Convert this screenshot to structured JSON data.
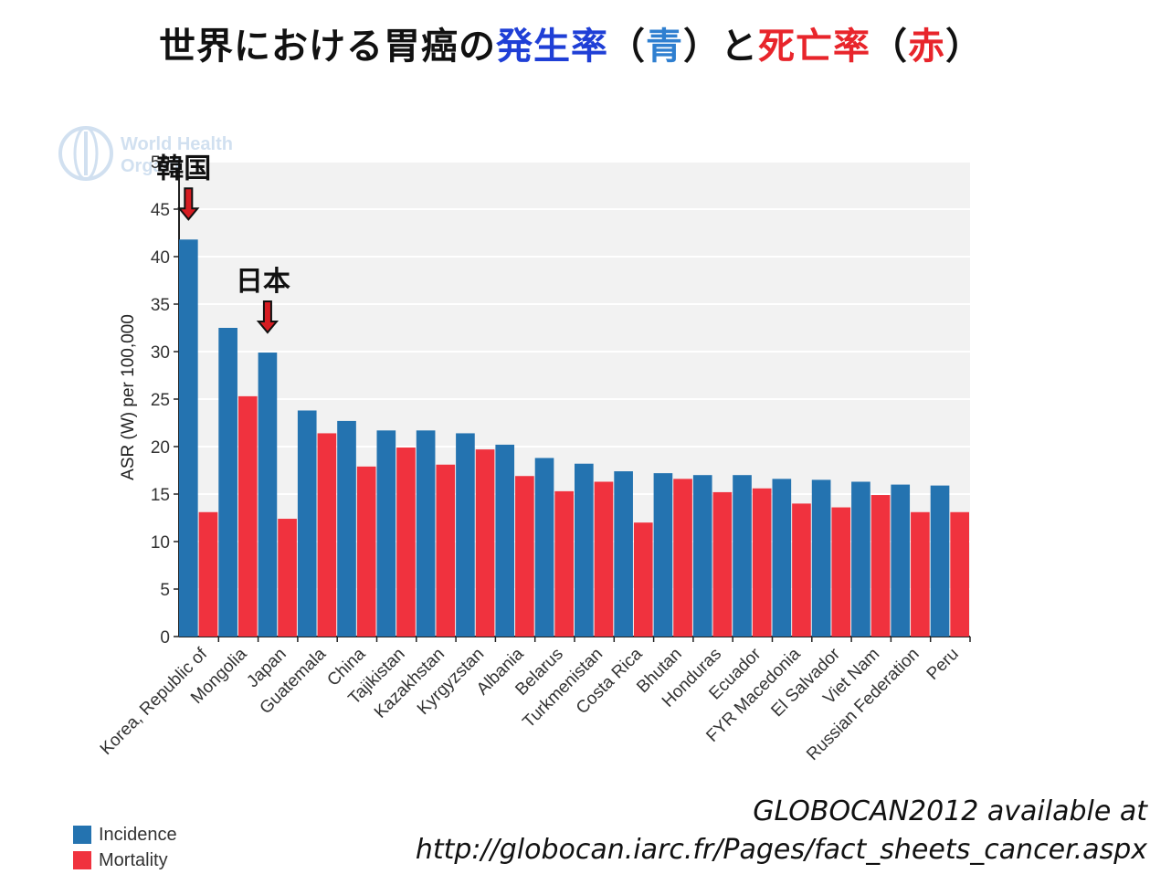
{
  "title": {
    "part1": "世界における胃癌の",
    "part2": "発生率",
    "part3": "（",
    "part4": "青",
    "part5": "）と",
    "part6": "死亡率",
    "part7": "（",
    "part8": "赤",
    "part9": "）"
  },
  "logo_text": {
    "line1": "World Health",
    "line2": "Organization"
  },
  "annotations": [
    {
      "label": "韓国",
      "category": "Korea, Republic of"
    },
    {
      "label": "日本",
      "category": "Japan"
    }
  ],
  "source": {
    "line1": "GLOBOCAN2012 available at",
    "line2": "http://globocan.iarc.fr/Pages/fact_sheets_cancer.aspx"
  },
  "colors": {
    "incidence": "#2473b0",
    "mortality": "#f0323e",
    "plot_bg": "#f2f2f2"
  },
  "chart_data": {
    "type": "bar",
    "title": "",
    "xlabel": "",
    "ylabel": "ASR (W) per 100,000",
    "ylim": [
      0,
      50
    ],
    "yticks": [
      0,
      5,
      10,
      15,
      20,
      25,
      30,
      35,
      40,
      45,
      50
    ],
    "grid": true,
    "legend_position": "bottom-left",
    "categories": [
      "Korea, Republic of",
      "Mongolia",
      "Japan",
      "Guatemala",
      "China",
      "Tajikistan",
      "Kazakhstan",
      "Kyrgyzstan",
      "Albania",
      "Belarus",
      "Turkmenistan",
      "Costa Rica",
      "Bhutan",
      "Honduras",
      "Ecuador",
      "FYR Macedonia",
      "El Salvador",
      "Viet Nam",
      "Russian Federation",
      "Peru"
    ],
    "series": [
      {
        "name": "Incidence",
        "values": [
          41.8,
          32.5,
          29.9,
          23.8,
          22.7,
          21.7,
          21.7,
          21.4,
          20.2,
          18.8,
          18.2,
          17.4,
          17.2,
          17.0,
          17.0,
          16.6,
          16.5,
          16.3,
          16.0,
          15.9
        ]
      },
      {
        "name": "Mortality",
        "values": [
          13.1,
          25.3,
          12.4,
          21.4,
          17.9,
          19.9,
          18.1,
          19.7,
          16.9,
          15.3,
          16.3,
          12.0,
          16.6,
          15.2,
          15.6,
          14.0,
          13.6,
          14.9,
          13.1,
          13.1
        ]
      }
    ]
  }
}
